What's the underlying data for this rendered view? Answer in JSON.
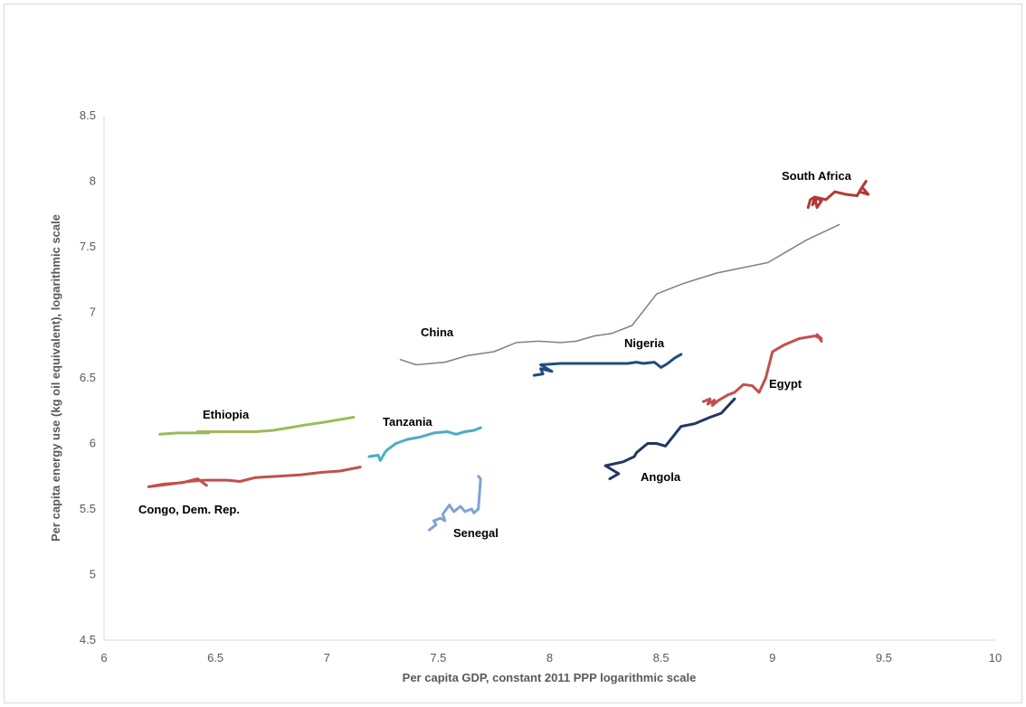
{
  "chart_data": {
    "type": "line",
    "title": "",
    "xlabel": "Per capita GDP, constant 2011 PPP logarithmic scale",
    "ylabel": "Per capita energy use (kg oil equivalent), logarithmic scale",
    "xlim": [
      6,
      10
    ],
    "ylim": [
      4.5,
      8.5
    ],
    "xticks": [
      "6",
      "6.5",
      "7",
      "7.5",
      "8",
      "8.5",
      "9",
      "9.5",
      "10"
    ],
    "yticks": [
      "4.5",
      "5",
      "5.5",
      "6",
      "6.5",
      "7",
      "7.5",
      "8",
      "8.5"
    ],
    "grid": false,
    "legend": "none (direct labels)",
    "series": [
      {
        "name": "South Africa",
        "color": "#b03a36",
        "width": 3,
        "x": [
          9.16,
          9.17,
          9.19,
          9.18,
          9.2,
          9.22,
          9.2,
          9.19,
          9.24,
          9.28,
          9.33,
          9.38,
          9.4,
          9.42,
          9.39,
          9.43,
          9.41
        ],
        "y": [
          7.8,
          7.86,
          7.88,
          7.82,
          7.87,
          7.85,
          7.8,
          7.88,
          7.86,
          7.92,
          7.9,
          7.89,
          7.95,
          8.0,
          7.92,
          7.9,
          7.94
        ]
      },
      {
        "name": "China",
        "color": "#808080",
        "width": 1.5,
        "x": [
          7.33,
          7.4,
          7.53,
          7.63,
          7.75,
          7.85,
          7.95,
          8.05,
          8.12,
          8.2,
          8.28,
          8.37,
          8.48,
          8.6,
          8.75,
          8.98,
          9.05,
          9.15,
          9.3
        ],
        "y": [
          6.64,
          6.6,
          6.62,
          6.67,
          6.7,
          6.77,
          6.78,
          6.77,
          6.78,
          6.82,
          6.84,
          6.9,
          7.14,
          7.22,
          7.3,
          7.38,
          7.45,
          7.55,
          7.67
        ]
      },
      {
        "name": "Nigeria",
        "color": "#1f4e79",
        "width": 3,
        "x": [
          7.93,
          7.97,
          7.96,
          8.01,
          7.96,
          8.05,
          8.15,
          8.3,
          8.35,
          8.39,
          8.42,
          8.47,
          8.5,
          8.53,
          8.56,
          8.59
        ],
        "y": [
          6.52,
          6.53,
          6.57,
          6.55,
          6.6,
          6.61,
          6.61,
          6.61,
          6.61,
          6.62,
          6.61,
          6.62,
          6.58,
          6.61,
          6.65,
          6.68
        ]
      },
      {
        "name": "Egypt",
        "color": "#c0504d",
        "width": 3,
        "x": [
          8.69,
          8.72,
          8.71,
          8.74,
          8.73,
          8.76,
          8.8,
          8.83,
          8.87,
          8.91,
          8.94,
          8.97,
          9.0,
          9.05,
          9.12,
          9.19,
          9.22,
          9.2,
          9.22
        ],
        "y": [
          6.32,
          6.34,
          6.3,
          6.33,
          6.29,
          6.33,
          6.37,
          6.39,
          6.45,
          6.44,
          6.39,
          6.5,
          6.7,
          6.75,
          6.8,
          6.82,
          6.8,
          6.83,
          6.78
        ]
      },
      {
        "name": "Angola",
        "color": "#203864",
        "width": 3,
        "x": [
          8.27,
          8.31,
          8.25,
          8.33,
          8.38,
          8.39,
          8.44,
          8.48,
          8.52,
          8.59,
          8.65,
          8.72,
          8.77,
          8.83
        ],
        "y": [
          5.73,
          5.77,
          5.83,
          5.86,
          5.9,
          5.93,
          6.0,
          6.0,
          5.98,
          6.13,
          6.15,
          6.2,
          6.23,
          6.34
        ]
      },
      {
        "name": "Ethiopia",
        "color": "#9bbb59",
        "width": 3,
        "x": [
          6.25,
          6.33,
          6.4,
          6.47,
          6.42,
          6.5,
          6.58,
          6.68,
          6.76,
          6.83,
          6.9,
          6.98,
          7.05,
          7.12
        ],
        "y": [
          6.07,
          6.08,
          6.08,
          6.08,
          6.09,
          6.09,
          6.09,
          6.09,
          6.1,
          6.12,
          6.14,
          6.16,
          6.18,
          6.2
        ]
      },
      {
        "name": "Tanzania",
        "color": "#4bacc6",
        "width": 3,
        "x": [
          7.19,
          7.23,
          7.24,
          7.26,
          7.27,
          7.31,
          7.36,
          7.42,
          7.48,
          7.54,
          7.58,
          7.62,
          7.66,
          7.69
        ],
        "y": [
          5.9,
          5.91,
          5.87,
          5.93,
          5.95,
          6.0,
          6.03,
          6.05,
          6.08,
          6.09,
          6.07,
          6.09,
          6.1,
          6.12
        ]
      },
      {
        "name": "Congo, Dem. Rep.",
        "color": "#c0504d",
        "width": 3,
        "x": [
          6.46,
          6.42,
          6.35,
          6.27,
          6.2,
          6.3,
          6.38,
          6.45,
          6.55,
          6.61,
          6.68,
          6.78,
          6.88,
          6.98,
          7.06,
          7.15
        ],
        "y": [
          5.68,
          5.73,
          5.7,
          5.69,
          5.67,
          5.69,
          5.71,
          5.72,
          5.72,
          5.71,
          5.74,
          5.75,
          5.76,
          5.78,
          5.79,
          5.82
        ]
      },
      {
        "name": "Senegal",
        "color": "#7fa3d3",
        "width": 3,
        "x": [
          7.46,
          7.49,
          7.48,
          7.51,
          7.53,
          7.52,
          7.55,
          7.57,
          7.6,
          7.62,
          7.65,
          7.66,
          7.68,
          7.69,
          7.68
        ],
        "y": [
          5.34,
          5.38,
          5.41,
          5.43,
          5.41,
          5.46,
          5.53,
          5.48,
          5.52,
          5.48,
          5.5,
          5.47,
          5.5,
          5.73,
          5.75
        ]
      }
    ]
  }
}
